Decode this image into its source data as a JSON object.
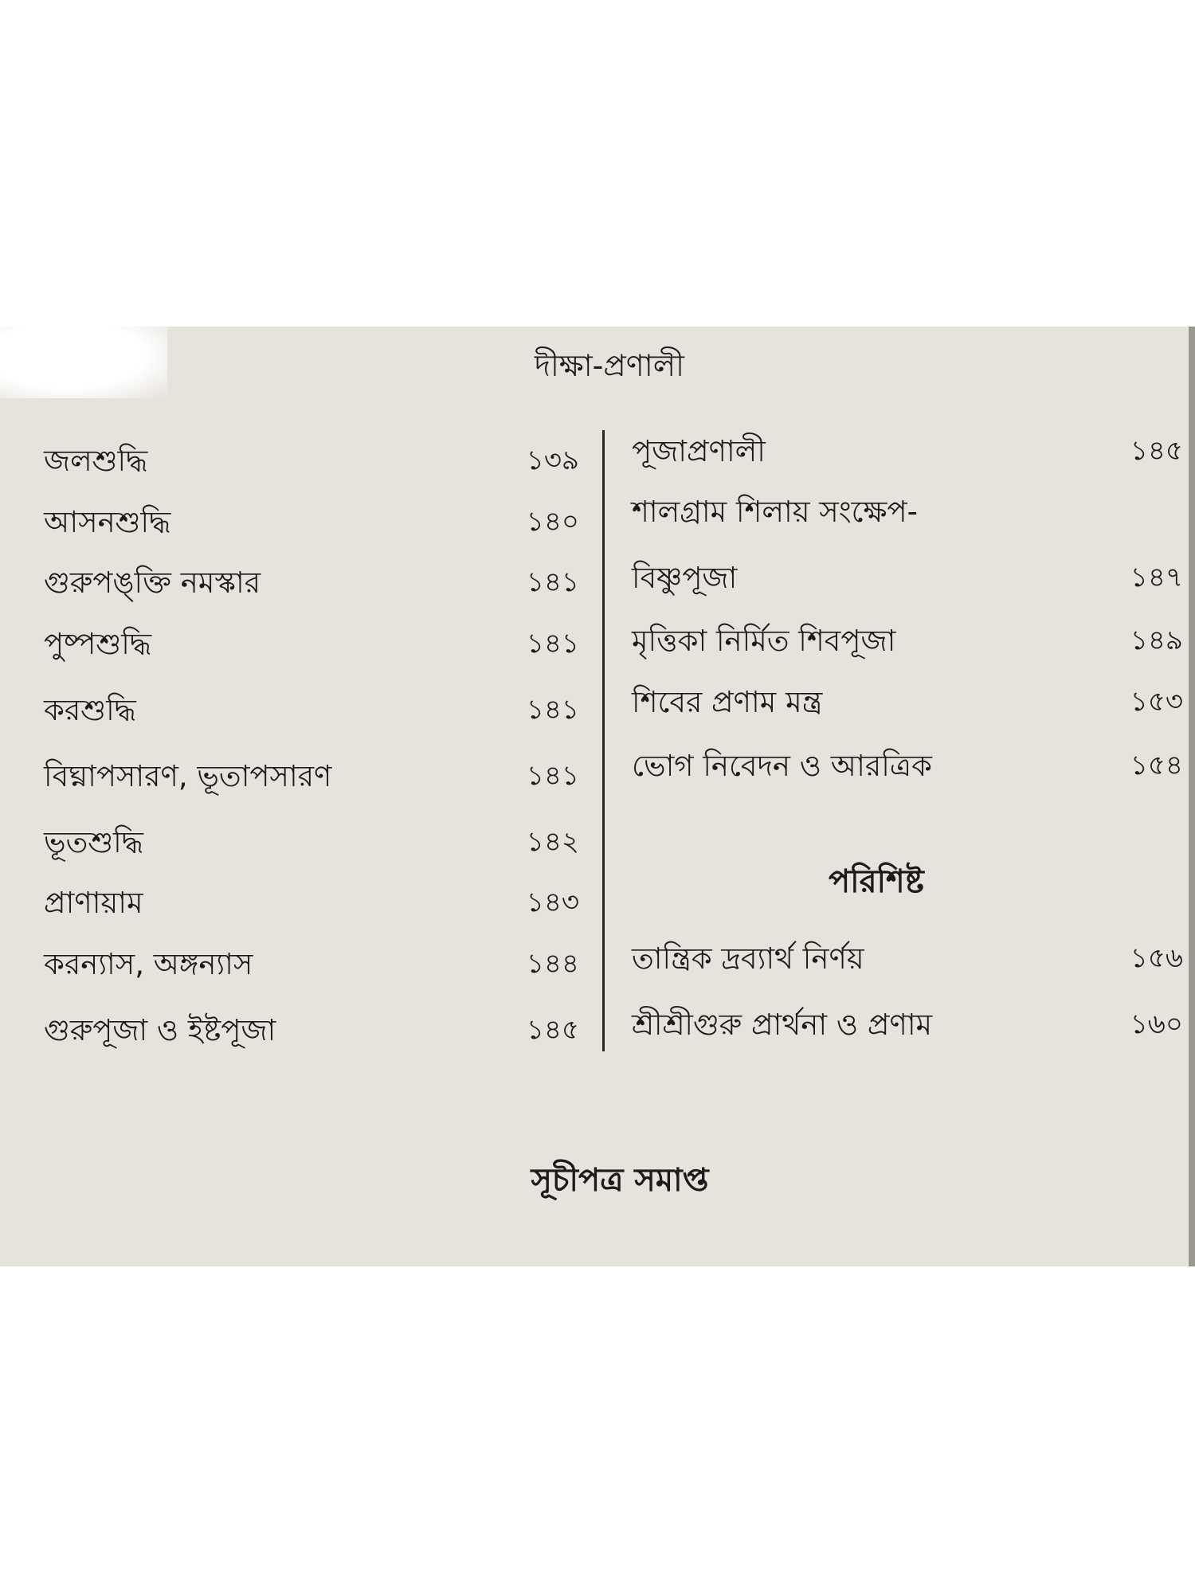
{
  "title": "দীক্ষা-প্রণালী",
  "left_entries": [
    {
      "label": "জলশুদ্ধি",
      "page": "১৩৯"
    },
    {
      "label": "আসনশুদ্ধি",
      "page": "১৪০"
    },
    {
      "label": "গুরুপঙ্‌ক্তি নমস্কার",
      "page": "১৪১"
    },
    {
      "label": "পুষ্পশুদ্ধি",
      "page": "১৪১"
    },
    {
      "label": "করশুদ্ধি",
      "page": "১৪১"
    },
    {
      "label": "বিঘ্নাপসারণ, ভূতাপসারণ",
      "page": "১৪১"
    },
    {
      "label": "ভূতশুদ্ধি",
      "page": "১৪২"
    },
    {
      "label": "প্রাণায়াম",
      "page": "১৪৩"
    },
    {
      "label": "করন্যাস, অঙ্গন্যাস",
      "page": "১৪৪"
    },
    {
      "label": "গুরুপূজা ও ইষ্টপূজা",
      "page": "১৪৫"
    }
  ],
  "right_entries": [
    {
      "label": "পূজাপ্রণালী",
      "page": "১৪৫"
    },
    {
      "label": "শালগ্রাম শিলায় সংক্ষেপ-",
      "page": ""
    },
    {
      "label": "বিষ্ণুপূজা",
      "page": "১৪৭"
    },
    {
      "label": "মৃত্তিকা নির্মিত শিবপূজা",
      "page": "১৪৯"
    },
    {
      "label": "শিবের প্রণাম মন্ত্র",
      "page": "১৫৩"
    },
    {
      "label": "ভোগ নিবেদন ও আরত্রিক",
      "page": "১৫৪"
    }
  ],
  "appendix_heading": "পরিশিষ্ট",
  "appendix_entries": [
    {
      "label": "তান্ত্রিক দ্রব্যার্থ নির্ণয়",
      "page": "১৫৬"
    },
    {
      "label": "শ্রীশ্রীগুরু প্রার্থনা ও প্রণাম",
      "page": "১৬০"
    }
  ],
  "footer": "সূচীপত্র সমাপ্ত",
  "colors": {
    "paper": "#e6e2dc",
    "ink": "#1c1a1a"
  }
}
